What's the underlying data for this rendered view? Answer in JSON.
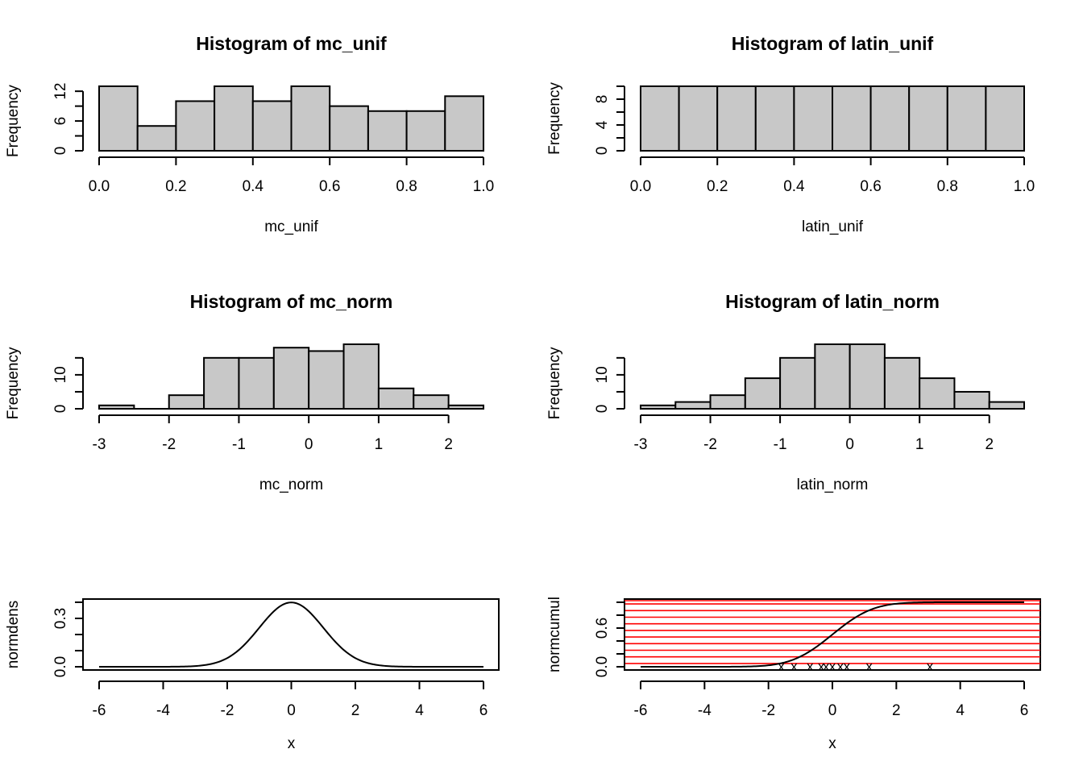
{
  "chart_data": [
    {
      "type": "bar",
      "title": "Histogram of mc_unif",
      "xlabel": "mc_unif",
      "ylabel": "Frequency",
      "breaks": [
        0.0,
        0.1,
        0.2,
        0.3,
        0.4,
        0.5,
        0.6,
        0.7,
        0.8,
        0.9,
        1.0
      ],
      "values": [
        13,
        5,
        10,
        13,
        10,
        13,
        9,
        8,
        8,
        11
      ],
      "xticks": [
        "0.0",
        "0.2",
        "0.4",
        "0.6",
        "0.8",
        "1.0"
      ],
      "yticks": [
        "0",
        "6",
        "12"
      ],
      "bar_color": "#c8c8c8"
    },
    {
      "type": "bar",
      "title": "Histogram of latin_unif",
      "xlabel": "latin_unif",
      "ylabel": "Frequency",
      "breaks": [
        0.0,
        0.1,
        0.2,
        0.3,
        0.4,
        0.5,
        0.6,
        0.7,
        0.8,
        0.9,
        1.0
      ],
      "values": [
        10,
        10,
        10,
        10,
        10,
        10,
        10,
        10,
        10,
        10
      ],
      "xticks": [
        "0.0",
        "0.2",
        "0.4",
        "0.6",
        "0.8",
        "1.0"
      ],
      "yticks": [
        "0",
        "4",
        "8"
      ],
      "bar_color": "#c8c8c8"
    },
    {
      "type": "bar",
      "title": "Histogram of mc_norm",
      "xlabel": "mc_norm",
      "ylabel": "Frequency",
      "breaks": [
        -3,
        -2.5,
        -2,
        -1.5,
        -1,
        -0.5,
        0,
        0.5,
        1,
        1.5,
        2,
        2.5
      ],
      "values": [
        1,
        0,
        4,
        15,
        15,
        18,
        17,
        19,
        6,
        4,
        1
      ],
      "xticks": [
        "-3",
        "-2",
        "-1",
        "0",
        "1",
        "2"
      ],
      "yticks": [
        "0",
        "10"
      ],
      "bar_color": "#c8c8c8"
    },
    {
      "type": "bar",
      "title": "Histogram of latin_norm",
      "xlabel": "latin_norm",
      "ylabel": "Frequency",
      "breaks": [
        -3,
        -2.5,
        -2,
        -1.5,
        -1,
        -0.5,
        0,
        0.5,
        1,
        1.5,
        2,
        2.5
      ],
      "values": [
        1,
        2,
        4,
        9,
        15,
        19,
        19,
        15,
        9,
        5,
        2
      ],
      "xticks": [
        "-3",
        "-2",
        "-1",
        "0",
        "1",
        "2"
      ],
      "yticks": [
        "0",
        "10"
      ],
      "bar_color": "#c8c8c8"
    },
    {
      "type": "line",
      "title": "",
      "xlabel": "x",
      "ylabel": "normdens",
      "function": "normal density",
      "x_range": [
        -6,
        6
      ],
      "y_range": [
        0,
        0.4
      ],
      "xticks": [
        "-6",
        "-4",
        "-2",
        "0",
        "2",
        "4",
        "6"
      ],
      "yticks": [
        "0.0",
        "0.3"
      ],
      "line_color": "#000000"
    },
    {
      "type": "line",
      "title": "",
      "xlabel": "x",
      "ylabel": "normcumul",
      "function": "normal cumulative distribution",
      "x_range": [
        -6,
        6
      ],
      "y_range": [
        0,
        1
      ],
      "xticks": [
        "-6",
        "-4",
        "-2",
        "0",
        "2",
        "4",
        "6"
      ],
      "yticks": [
        "0.0",
        "0.6"
      ],
      "line_color": "#000000",
      "reference_lines_color": "#ff0000",
      "reference_lines_y": [
        0.05,
        0.15,
        0.25,
        0.35,
        0.45,
        0.55,
        0.65,
        0.75,
        0.85,
        0.95,
        1.0
      ],
      "markers": {
        "symbol": "x",
        "x": [
          -1.6,
          -1.2,
          -0.7,
          -0.35,
          -0.2,
          0.0,
          0.25,
          0.45,
          1.15,
          3.05
        ]
      }
    }
  ]
}
